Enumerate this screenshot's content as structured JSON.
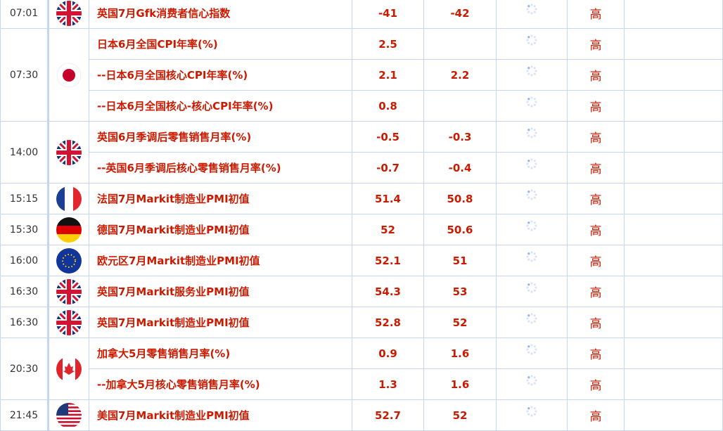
{
  "colors": {
    "text_red": "#cc1a00",
    "border": "#c6d6ee",
    "spinner": "#8fb4e8"
  },
  "groups": [
    {
      "time": "07:01",
      "flag": "uk-flag",
      "events": [
        {
          "name": "英国7月Gfk消费者信心指数",
          "previous": "-41",
          "forecast": "-42",
          "importance": "高"
        }
      ]
    },
    {
      "time": "07:30",
      "flag": "japan-flag",
      "events": [
        {
          "name": "日本6月全国CPI年率(%)",
          "previous": "2.5",
          "forecast": "",
          "importance": "高"
        },
        {
          "name": "--日本6月全国核心CPI年率(%)",
          "previous": "2.1",
          "forecast": "2.2",
          "importance": "高"
        },
        {
          "name": "--日本6月全国核心-核心CPI年率(%)",
          "previous": "0.8",
          "forecast": "",
          "importance": "高"
        }
      ]
    },
    {
      "time": "14:00",
      "flag": "uk-flag",
      "events": [
        {
          "name": "英国6月季调后零售销售月率(%)",
          "previous": "-0.5",
          "forecast": "-0.3",
          "importance": "高"
        },
        {
          "name": "--英国6月季调后核心零售销售月率(%)",
          "previous": "-0.7",
          "forecast": "-0.4",
          "importance": "高"
        }
      ]
    },
    {
      "time": "15:15",
      "flag": "france-flag",
      "events": [
        {
          "name": "法国7月Markit制造业PMI初值",
          "previous": "51.4",
          "forecast": "50.8",
          "importance": "高"
        }
      ]
    },
    {
      "time": "15:30",
      "flag": "germany-flag",
      "events": [
        {
          "name": "德国7月Markit制造业PMI初值",
          "previous": "52",
          "forecast": "50.6",
          "importance": "高"
        }
      ]
    },
    {
      "time": "16:00",
      "flag": "eu-flag",
      "events": [
        {
          "name": "欧元区7月Markit制造业PMI初值",
          "previous": "52.1",
          "forecast": "51",
          "importance": "高"
        }
      ]
    },
    {
      "time": "16:30",
      "flag": "uk-flag",
      "events": [
        {
          "name": "英国7月Markit服务业PMI初值",
          "previous": "54.3",
          "forecast": "53",
          "importance": "高"
        }
      ]
    },
    {
      "time": "16:30",
      "flag": "uk-flag",
      "events": [
        {
          "name": "英国7月Markit制造业PMI初值",
          "previous": "52.8",
          "forecast": "52",
          "importance": "高"
        }
      ]
    },
    {
      "time": "20:30",
      "flag": "canada-flag",
      "events": [
        {
          "name": "加拿大5月零售销售月率(%)",
          "previous": "0.9",
          "forecast": "1.6",
          "importance": "高"
        },
        {
          "name": "--加拿大5月核心零售销售月率(%)",
          "previous": "1.3",
          "forecast": "1.6",
          "importance": "高"
        }
      ]
    },
    {
      "time": "21:45",
      "flag": "usa-flag",
      "events": [
        {
          "name": "美国7月Markit制造业PMI初值",
          "previous": "52.7",
          "forecast": "52",
          "importance": "高"
        }
      ]
    }
  ]
}
